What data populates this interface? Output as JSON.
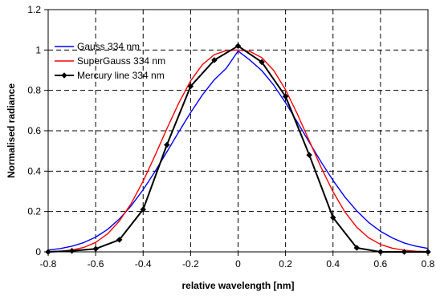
{
  "chart_data": {
    "type": "line",
    "title": "",
    "xlabel": "relative wavelength [nm]",
    "ylabel": "Normalised radiance",
    "xlim": [
      -0.8,
      0.8
    ],
    "ylim": [
      0,
      1.2
    ],
    "x_ticks": [
      -0.8,
      -0.6,
      -0.4,
      -0.2,
      0,
      0.2,
      0.4,
      0.6,
      0.8
    ],
    "x_tick_labels": [
      "-0.8",
      "-0.6",
      "-0.4",
      "-0.2",
      "0",
      "0.2",
      "0.4",
      "0.6",
      "0.8"
    ],
    "y_ticks": [
      0,
      0.2,
      0.4,
      0.6,
      0.8,
      1,
      1.2
    ],
    "y_tick_labels": [
      "0",
      "0.2",
      "0.4",
      "0.6",
      "0.8",
      "1",
      "1.2"
    ],
    "grid": true,
    "legend_position": "top-left",
    "series": [
      {
        "name": "Gauss 334 nm",
        "color": "#0000ff",
        "marker": "none",
        "x": [
          -0.8,
          -0.75,
          -0.7,
          -0.65,
          -0.6,
          -0.55,
          -0.5,
          -0.45,
          -0.4,
          -0.35,
          -0.3,
          -0.25,
          -0.2,
          -0.15,
          -0.1,
          -0.05,
          0,
          0.05,
          0.1,
          0.15,
          0.2,
          0.25,
          0.3,
          0.35,
          0.4,
          0.45,
          0.5,
          0.55,
          0.6,
          0.65,
          0.7,
          0.75,
          0.8
        ],
        "y": [
          0.009,
          0.016,
          0.028,
          0.046,
          0.073,
          0.111,
          0.163,
          0.229,
          0.308,
          0.398,
          0.495,
          0.594,
          0.69,
          0.778,
          0.853,
          0.909,
          0.995,
          0.95,
          0.898,
          0.826,
          0.739,
          0.642,
          0.543,
          0.445,
          0.354,
          0.272,
          0.203,
          0.146,
          0.102,
          0.069,
          0.044,
          0.028,
          0.017
        ]
      },
      {
        "name": "SuperGauss 334 nm",
        "color": "#ff0000",
        "marker": "none",
        "x": [
          -0.8,
          -0.75,
          -0.7,
          -0.65,
          -0.6,
          -0.55,
          -0.5,
          -0.45,
          -0.4,
          -0.35,
          -0.3,
          -0.25,
          -0.2,
          -0.15,
          -0.1,
          -0.05,
          0,
          0.05,
          0.1,
          0.15,
          0.2,
          0.25,
          0.3,
          0.35,
          0.4,
          0.45,
          0.5,
          0.55,
          0.6,
          0.65,
          0.7,
          0.75,
          0.8
        ],
        "y": [
          0.001,
          0.003,
          0.009,
          0.022,
          0.047,
          0.089,
          0.153,
          0.24,
          0.35,
          0.477,
          0.61,
          0.737,
          0.847,
          0.928,
          0.977,
          0.997,
          1.0,
          0.993,
          0.962,
          0.899,
          0.803,
          0.682,
          0.55,
          0.418,
          0.298,
          0.198,
          0.122,
          0.07,
          0.037,
          0.018,
          0.008,
          0.003,
          0.001
        ]
      },
      {
        "name": "Mercury line 334 nm",
        "color": "#000000",
        "marker": "diamond",
        "x": [
          -0.8,
          -0.7,
          -0.6,
          -0.5,
          -0.4,
          -0.3,
          -0.2,
          -0.1,
          0.0,
          0.1,
          0.2,
          0.3,
          0.4,
          0.5,
          0.6,
          0.7,
          0.8
        ],
        "y": [
          0.0,
          0.005,
          0.015,
          0.06,
          0.21,
          0.53,
          0.82,
          0.95,
          1.02,
          0.94,
          0.77,
          0.48,
          0.17,
          0.02,
          0.0,
          0.0,
          0.0
        ]
      }
    ]
  }
}
